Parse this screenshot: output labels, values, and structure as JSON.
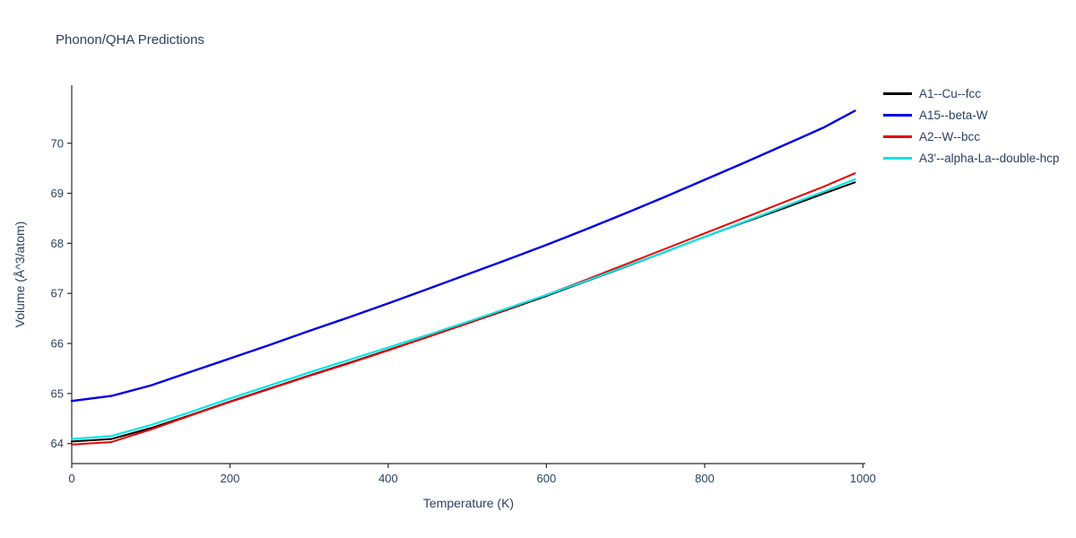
{
  "chart_data": {
    "type": "line",
    "title": "Phonon/QHA Predictions",
    "xlabel": "Temperature (K)",
    "ylabel": "Volume (Å^3/atom)",
    "xlim": [
      0,
      1003
    ],
    "ylim": [
      63.6,
      71.16
    ],
    "xticks": [
      0,
      200,
      400,
      600,
      800,
      1000
    ],
    "yticks": [
      64,
      65,
      66,
      67,
      68,
      69,
      70
    ],
    "grid": false,
    "legend_position": "top-right-outside",
    "axis_color": "#2b2b2b",
    "text_color": "#2a3f5f",
    "x": [
      0,
      50,
      100,
      150,
      200,
      250,
      300,
      350,
      400,
      450,
      500,
      550,
      600,
      650,
      700,
      750,
      800,
      850,
      900,
      950,
      990
    ],
    "series": [
      {
        "name": "A1--Cu--fcc",
        "color": "#000000",
        "width": 2,
        "values": [
          64.04,
          64.09,
          64.31,
          64.57,
          64.84,
          65.1,
          65.36,
          65.61,
          65.87,
          66.13,
          66.4,
          66.67,
          66.95,
          67.24,
          67.53,
          67.83,
          68.13,
          68.42,
          68.7,
          68.99,
          69.22
        ]
      },
      {
        "name": "A15--beta-W",
        "color": "#0000e0",
        "width": 2.4,
        "values": [
          64.85,
          64.95,
          65.16,
          65.43,
          65.7,
          65.97,
          66.25,
          66.52,
          66.8,
          67.09,
          67.38,
          67.67,
          67.97,
          68.28,
          68.6,
          68.93,
          69.27,
          69.61,
          69.96,
          70.31,
          70.65
        ]
      },
      {
        "name": "A2--W--bcc",
        "color": "#e80000",
        "width": 2,
        "values": [
          63.98,
          64.03,
          64.28,
          64.56,
          64.83,
          65.09,
          65.35,
          65.6,
          65.86,
          66.13,
          66.4,
          66.68,
          66.97,
          67.27,
          67.58,
          67.89,
          68.2,
          68.51,
          68.82,
          69.13,
          69.4
        ]
      },
      {
        "name": "A3'--alpha-La--double-hcp",
        "color": "#00e5e5",
        "width": 2.2,
        "values": [
          64.09,
          64.15,
          64.37,
          64.63,
          64.9,
          65.16,
          65.42,
          65.67,
          65.92,
          66.17,
          66.43,
          66.7,
          66.97,
          67.25,
          67.54,
          67.83,
          68.13,
          68.43,
          68.73,
          69.03,
          69.28
        ]
      }
    ]
  }
}
